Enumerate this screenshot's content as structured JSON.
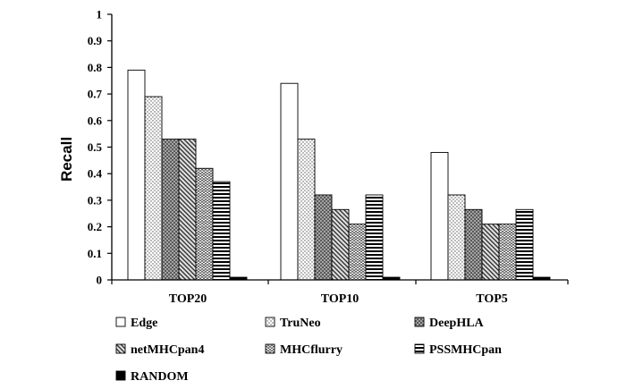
{
  "chart_data": {
    "type": "bar",
    "title": "",
    "xlabel": "",
    "ylabel": "Recall",
    "ylim": [
      0,
      1
    ],
    "yticks": [
      "0",
      "0.1",
      "0.2",
      "0.3",
      "0.4",
      "0.5",
      "0.6",
      "0.7",
      "0.8",
      "0.9",
      "1"
    ],
    "categories": [
      "TOP20",
      "TOP10",
      "TOP5"
    ],
    "series": [
      {
        "name": "Edge",
        "pattern": "white",
        "values": [
          0.79,
          0.74,
          0.48
        ]
      },
      {
        "name": "TruNeo",
        "pattern": "dots",
        "values": [
          0.69,
          0.53,
          0.32
        ]
      },
      {
        "name": "DeepHLA",
        "pattern": "dark-dots",
        "values": [
          0.53,
          0.32,
          0.265
        ]
      },
      {
        "name": "netMHCpan4",
        "pattern": "diagonal",
        "values": [
          0.53,
          0.265,
          0.21
        ]
      },
      {
        "name": "MHCflurry",
        "pattern": "zigzag",
        "values": [
          0.42,
          0.21,
          0.21
        ]
      },
      {
        "name": "PSSMHCpan",
        "pattern": "horizontal",
        "values": [
          0.37,
          0.32,
          0.265
        ]
      },
      {
        "name": "RANDOM",
        "pattern": "black",
        "values": [
          0.01,
          0.01,
          0.01
        ]
      }
    ],
    "legend": "bottom",
    "grid": false
  }
}
